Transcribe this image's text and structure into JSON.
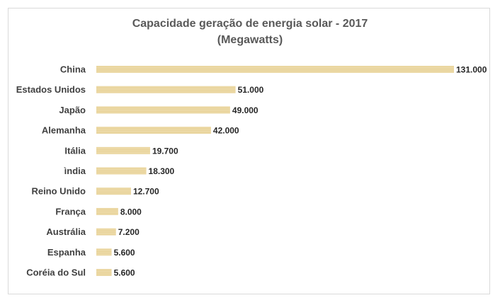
{
  "chart_data": {
    "type": "bar",
    "orientation": "horizontal",
    "title": "Capacidade geração de energia solar - 2017",
    "subtitle": "(Megawatts)",
    "categories": [
      "China",
      "Estados Unidos",
      "Japão",
      "Alemanha",
      "Itália",
      "ìndia",
      "Reino Unido",
      "França",
      "Austrália",
      "Espanha",
      "Coréia do Sul"
    ],
    "values": [
      131000,
      51000,
      49000,
      42000,
      19700,
      18300,
      12700,
      8000,
      7200,
      5600,
      5600
    ],
    "value_labels": [
      "131.000",
      "51.000",
      "49.000",
      "42.000",
      "19.700",
      "18.300",
      "12.700",
      "8.000",
      "7.200",
      "5.600",
      "5.600"
    ],
    "xlim": [
      0,
      131000
    ],
    "grid": false,
    "legend": "none",
    "bar_color": "#ecd9a6",
    "bar_texture_color": "#e2c785"
  }
}
